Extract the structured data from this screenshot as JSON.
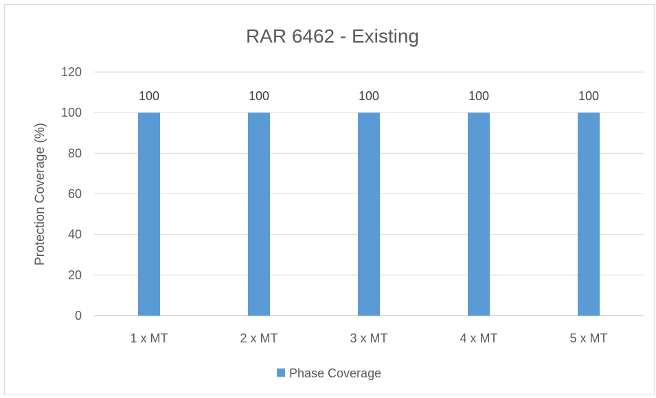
{
  "chart_data": {
    "type": "bar",
    "title": "RAR 6462 - Existing",
    "xlabel": "",
    "ylabel": "Protection Coverage (%)",
    "categories": [
      "1 x MT",
      "2 x MT",
      "3 x MT",
      "4 x MT",
      "5 x MT"
    ],
    "series": [
      {
        "name": "Phase Coverage",
        "values": [
          100,
          100,
          100,
          100,
          100
        ],
        "color": "#5b9bd5"
      }
    ],
    "data_labels": [
      "100",
      "100",
      "100",
      "100",
      "100"
    ],
    "ylim": [
      0,
      120
    ],
    "yticks": [
      0,
      20,
      40,
      60,
      80,
      100,
      120
    ],
    "grid": true,
    "legend_position": "bottom"
  }
}
